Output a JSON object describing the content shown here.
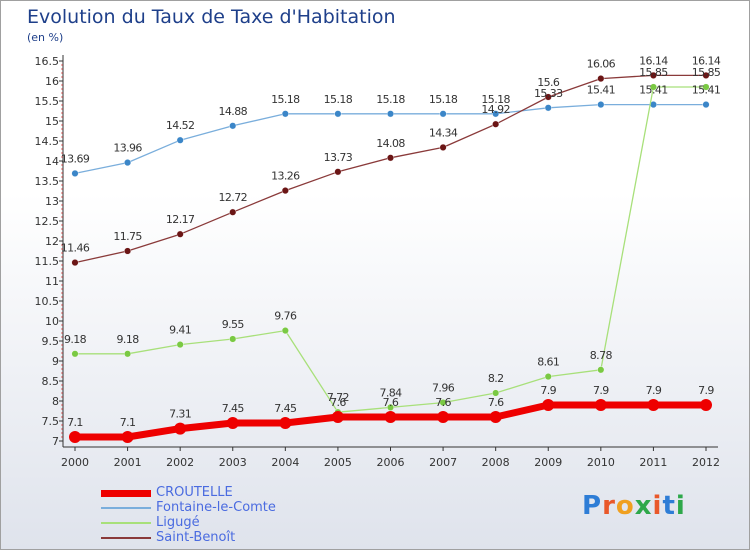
{
  "title": "Evolution du Taux de Taxe d'Habitation",
  "subtitle": "(en %)",
  "logo": {
    "text": "Proxiti",
    "colors": [
      "#2e7dd6",
      "#e9582a",
      "#f0a020",
      "#2ea84a",
      "#e9582a",
      "#2e7dd6",
      "#2ea84a"
    ]
  },
  "chart_data": {
    "type": "line",
    "title": "Evolution du Taux de Taxe d'Habitation",
    "ylabel": "(en %)",
    "ylim": [
      7,
      16.5
    ],
    "grid": false,
    "legend_position": "bottom-left",
    "x": [
      "2000",
      "2001",
      "2002",
      "2003",
      "2004",
      "2005",
      "2006",
      "2007",
      "2008",
      "2009",
      "2010",
      "2011",
      "2012"
    ],
    "y_ticks": [
      "7",
      "7.5",
      "8",
      "8.5",
      "9",
      "9.5",
      "10",
      "10.5",
      "11",
      "11.5",
      "12",
      "12.5",
      "13",
      "13.5",
      "14",
      "14.5",
      "15",
      "15.5",
      "16",
      "16.5"
    ],
    "series": [
      {
        "name": "CROUTELLE",
        "color": "#ee0000",
        "line_width": 7,
        "marker_color": "#ee0000",
        "values": [
          7.1,
          7.1,
          7.31,
          7.45,
          7.45,
          7.6,
          7.6,
          7.6,
          7.6,
          7.9,
          7.9,
          7.9,
          7.9
        ],
        "labels": [
          "7.1",
          "7.1",
          "7.31",
          "7.45",
          "7.45",
          "7.6",
          "7.6",
          "7.6",
          "7.6",
          "7.9",
          "7.9",
          "7.9",
          "7.9"
        ]
      },
      {
        "name": "Fontaine-le-Comte",
        "color": "#7aaedc",
        "line_width": 1.3,
        "marker_color": "#3b86c8",
        "values": [
          13.69,
          13.96,
          14.52,
          14.88,
          15.18,
          15.18,
          15.18,
          15.18,
          15.18,
          15.33,
          15.41,
          15.41,
          15.41
        ],
        "labels": [
          "13.69",
          "13.96",
          "14.52",
          "14.88",
          "15.18",
          "15.18",
          "15.18",
          "15.18",
          "15.18",
          "15.33",
          "15.41",
          "15.41",
          "15.41"
        ]
      },
      {
        "name": "Ligugé",
        "color": "#a8e07a",
        "line_width": 1.3,
        "marker_color": "#7ac943",
        "values": [
          9.18,
          9.18,
          9.41,
          9.55,
          9.76,
          7.72,
          7.84,
          7.96,
          8.2,
          8.61,
          8.78,
          15.85,
          15.85
        ],
        "labels": [
          "9.18",
          "9.18",
          "9.41",
          "9.55",
          "9.76",
          "7.72",
          "7.84",
          "7.96",
          "8.2",
          "8.61",
          "8.78",
          "15.85",
          "15.85"
        ]
      },
      {
        "name": "Saint-Benoît",
        "color": "#8a3a3a",
        "line_width": 1.3,
        "marker_color": "#6b1515",
        "values": [
          11.46,
          11.75,
          12.17,
          12.72,
          13.26,
          13.73,
          14.08,
          14.34,
          14.92,
          15.6,
          16.06,
          16.14,
          16.14
        ],
        "labels": [
          "11.46",
          "11.75",
          "12.17",
          "12.72",
          "13.26",
          "13.73",
          "14.08",
          "14.34",
          "14.92",
          "15.6",
          "16.06",
          "16.14",
          "16.14"
        ]
      }
    ]
  }
}
